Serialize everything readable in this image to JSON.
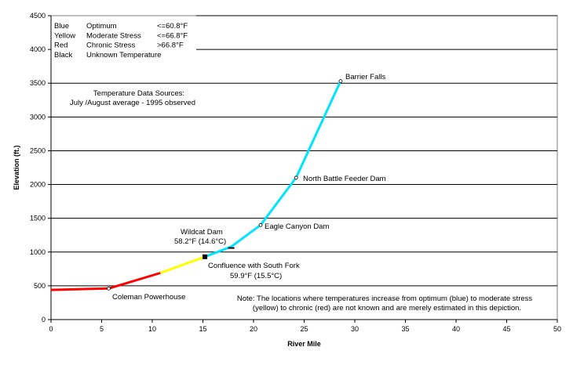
{
  "chart_data": {
    "type": "line",
    "title": "",
    "xlabel": "River Mile",
    "ylabel": "Elevation (ft.)",
    "xlim": [
      0,
      50
    ],
    "ylim": [
      0,
      4500
    ],
    "x_ticks": [
      0,
      5,
      10,
      15,
      20,
      25,
      30,
      35,
      40,
      45,
      50
    ],
    "y_ticks": [
      0,
      500,
      1000,
      1500,
      2000,
      2500,
      3000,
      3500,
      4000,
      4500
    ],
    "grid": "horizontal",
    "colors": {
      "optimum": "#00e5ff",
      "moderate": "#ffff00",
      "chronic": "#ff0000",
      "unknown": "#000000"
    },
    "series": [
      {
        "color": "#ff0000",
        "x": [
          0,
          5.7
        ],
        "y": [
          440,
          460
        ]
      },
      {
        "color": "#ff0000",
        "x": [
          5.7,
          10.8
        ],
        "y": [
          460,
          690
        ]
      },
      {
        "color": "#ffff00",
        "x": [
          10.8,
          15.2
        ],
        "y": [
          690,
          930
        ]
      },
      {
        "color": "#00e5ff",
        "x": [
          15.2,
          17.8,
          20.7,
          24.2,
          28.6
        ],
        "y": [
          930,
          1080,
          1400,
          2100,
          3530
        ]
      }
    ],
    "points": [
      {
        "x": 5.7,
        "y": 460,
        "label": "Coleman Powerhouse"
      },
      {
        "x": 20.7,
        "y": 1400,
        "label": "Eagle Canyon Dam"
      },
      {
        "x": 24.2,
        "y": 2100,
        "label": "North Battle Feeder Dam"
      },
      {
        "x": 28.6,
        "y": 3530,
        "label": "Barrier Falls"
      }
    ],
    "markers": [
      {
        "x": 15.2,
        "y": 930,
        "kind": "square"
      },
      {
        "x": 17.8,
        "y": 1060,
        "kind": "dash"
      }
    ],
    "annotations": {
      "wildcat_line1": "Wildcat Dam",
      "wildcat_line2": "58.2°F (14.6°C)",
      "confluence_line1": "Confluence with South Fork",
      "confluence_line2": "59.9°F (15.5°C)",
      "sources_line1": "Temperature Data Sources:",
      "sources_line2": "July /August average - 1995 observed",
      "note_line1": "Note:  The locations where temperatures increase from optimum (blue) to moderate stress",
      "note_line2": "(yellow) to chronic (red) are not known and are merely estimated in this depiction."
    },
    "legend": [
      {
        "color": "Blue",
        "stress": "Optimum",
        "threshold": "<=60.8°F"
      },
      {
        "color": "Yellow",
        "stress": "Moderate Stress",
        "threshold": "<=66.8°F"
      },
      {
        "color": "Red",
        "stress": "Chronic Stress",
        "threshold": ">66.8°F"
      },
      {
        "color": "Black",
        "stress": "Unknown Temperature",
        "threshold": ""
      }
    ],
    "legend_position": "top-left"
  }
}
